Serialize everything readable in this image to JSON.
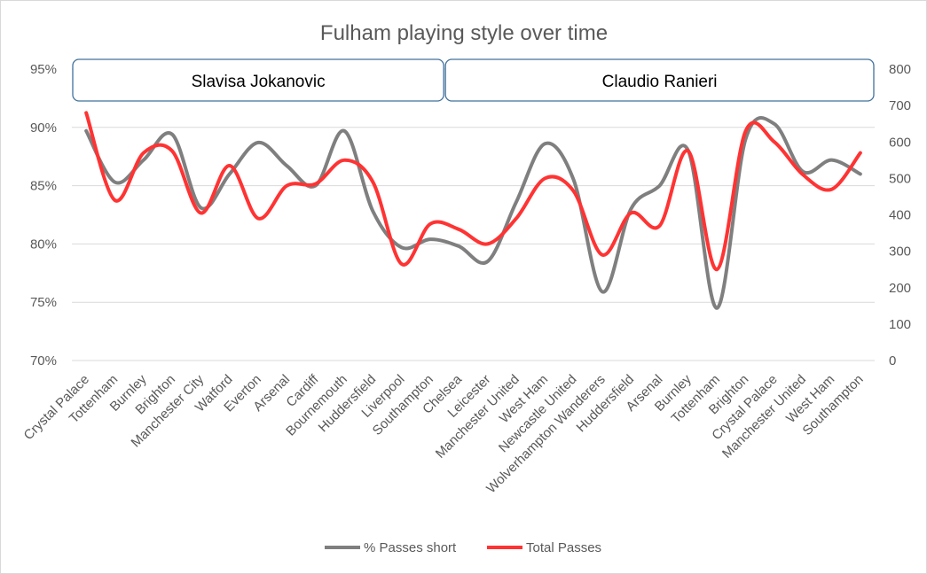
{
  "chart_data": {
    "type": "line",
    "title": "Fulham playing style over time",
    "smooth": true,
    "categories": [
      "Crystal Palace",
      "Tottenham",
      "Burnley",
      "Brighton",
      "Manchester City",
      "Watford",
      "Everton",
      "Arsenal",
      "Cardiff",
      "Bournemouth",
      "Huddersfield",
      "Liverpool",
      "Southampton",
      "Chelsea",
      "Leicester",
      "Manchester United",
      "West Ham",
      "Newcastle United",
      "Wolverhampton Wanderers",
      "Huddersfield",
      "Arsenal",
      "Burnley",
      "Tottenham",
      "Brighton",
      "Crystal Palace",
      "Manchester United",
      "West Ham",
      "Southampton"
    ],
    "left_axis": {
      "ticks": [
        "70%",
        "75%",
        "80%",
        "85%",
        "90%",
        "95%"
      ],
      "min": 70,
      "max": 95
    },
    "right_axis": {
      "ticks": [
        "0",
        "100",
        "200",
        "300",
        "400",
        "500",
        "600",
        "700",
        "800"
      ],
      "min": 0,
      "max": 800
    },
    "series": [
      {
        "name": "% Passes short",
        "axis": "left",
        "color": "#7f7f7f",
        "values": [
          89.7,
          85.3,
          87.2,
          89.4,
          83.1,
          86.0,
          88.7,
          86.7,
          85.0,
          89.7,
          82.8,
          79.7,
          80.4,
          79.8,
          78.5,
          83.6,
          88.6,
          85.5,
          75.9,
          83.0,
          85.0,
          88.0,
          74.5,
          89.0,
          90.3,
          86.2,
          87.2,
          86.0
        ]
      },
      {
        "name": "Total Passes",
        "axis": "right",
        "color": "#ff3333",
        "values": [
          680,
          440,
          570,
          575,
          405,
          535,
          390,
          480,
          485,
          550,
          490,
          265,
          375,
          360,
          320,
          390,
          500,
          465,
          290,
          405,
          370,
          575,
          250,
          630,
          600,
          510,
          470,
          570
        ]
      }
    ],
    "annotations": [
      {
        "label": "Slavisa Jokanovic",
        "from_index": 0,
        "to_index": 12
      },
      {
        "label": "Claudio Ranieri",
        "from_index": 13,
        "to_index": 27
      }
    ],
    "legend": {
      "placement": "bottom"
    },
    "grid": true
  }
}
